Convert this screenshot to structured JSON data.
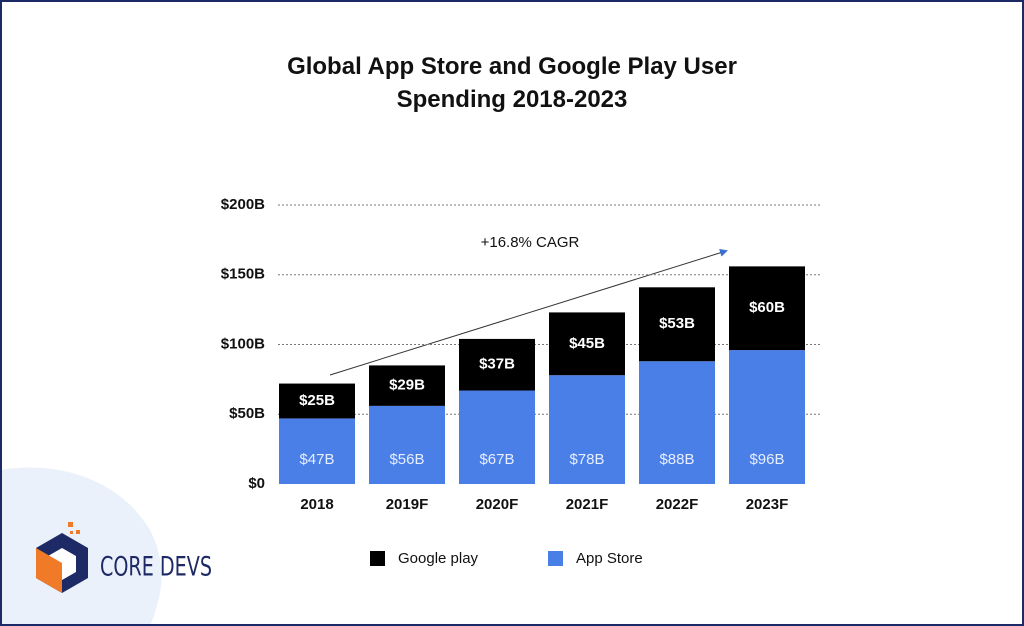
{
  "chart_data": {
    "type": "stacked_bar",
    "title": "Global App Store and Google Play User Spending 2018-2023",
    "annotation": "+16.8% CAGR",
    "categories": [
      "2018",
      "2019F",
      "2020F",
      "2021F",
      "2022F",
      "2023F"
    ],
    "series": [
      {
        "name": "Google play",
        "color": "#000000",
        "values": [
          25,
          29,
          37,
          45,
          53,
          60
        ],
        "value_labels": [
          "$25B",
          "$29B",
          "$37B",
          "$45B",
          "$53B",
          "$60B"
        ]
      },
      {
        "name": "App Store",
        "color": "#4a7fe8",
        "values": [
          47,
          56,
          67,
          78,
          88,
          96
        ],
        "value_labels": [
          "$47B",
          "$56B",
          "$67B",
          "$78B",
          "$88B",
          "$96B"
        ]
      }
    ],
    "ylim": [
      0,
      200
    ],
    "yticks": [
      {
        "value": 0,
        "label": "$0"
      },
      {
        "value": 50,
        "label": "$50B"
      },
      {
        "value": 100,
        "label": "$100B"
      },
      {
        "value": 150,
        "label": "$150B"
      },
      {
        "value": 200,
        "label": "$200B"
      }
    ],
    "grid": true
  },
  "logo": "CORE DEVS"
}
